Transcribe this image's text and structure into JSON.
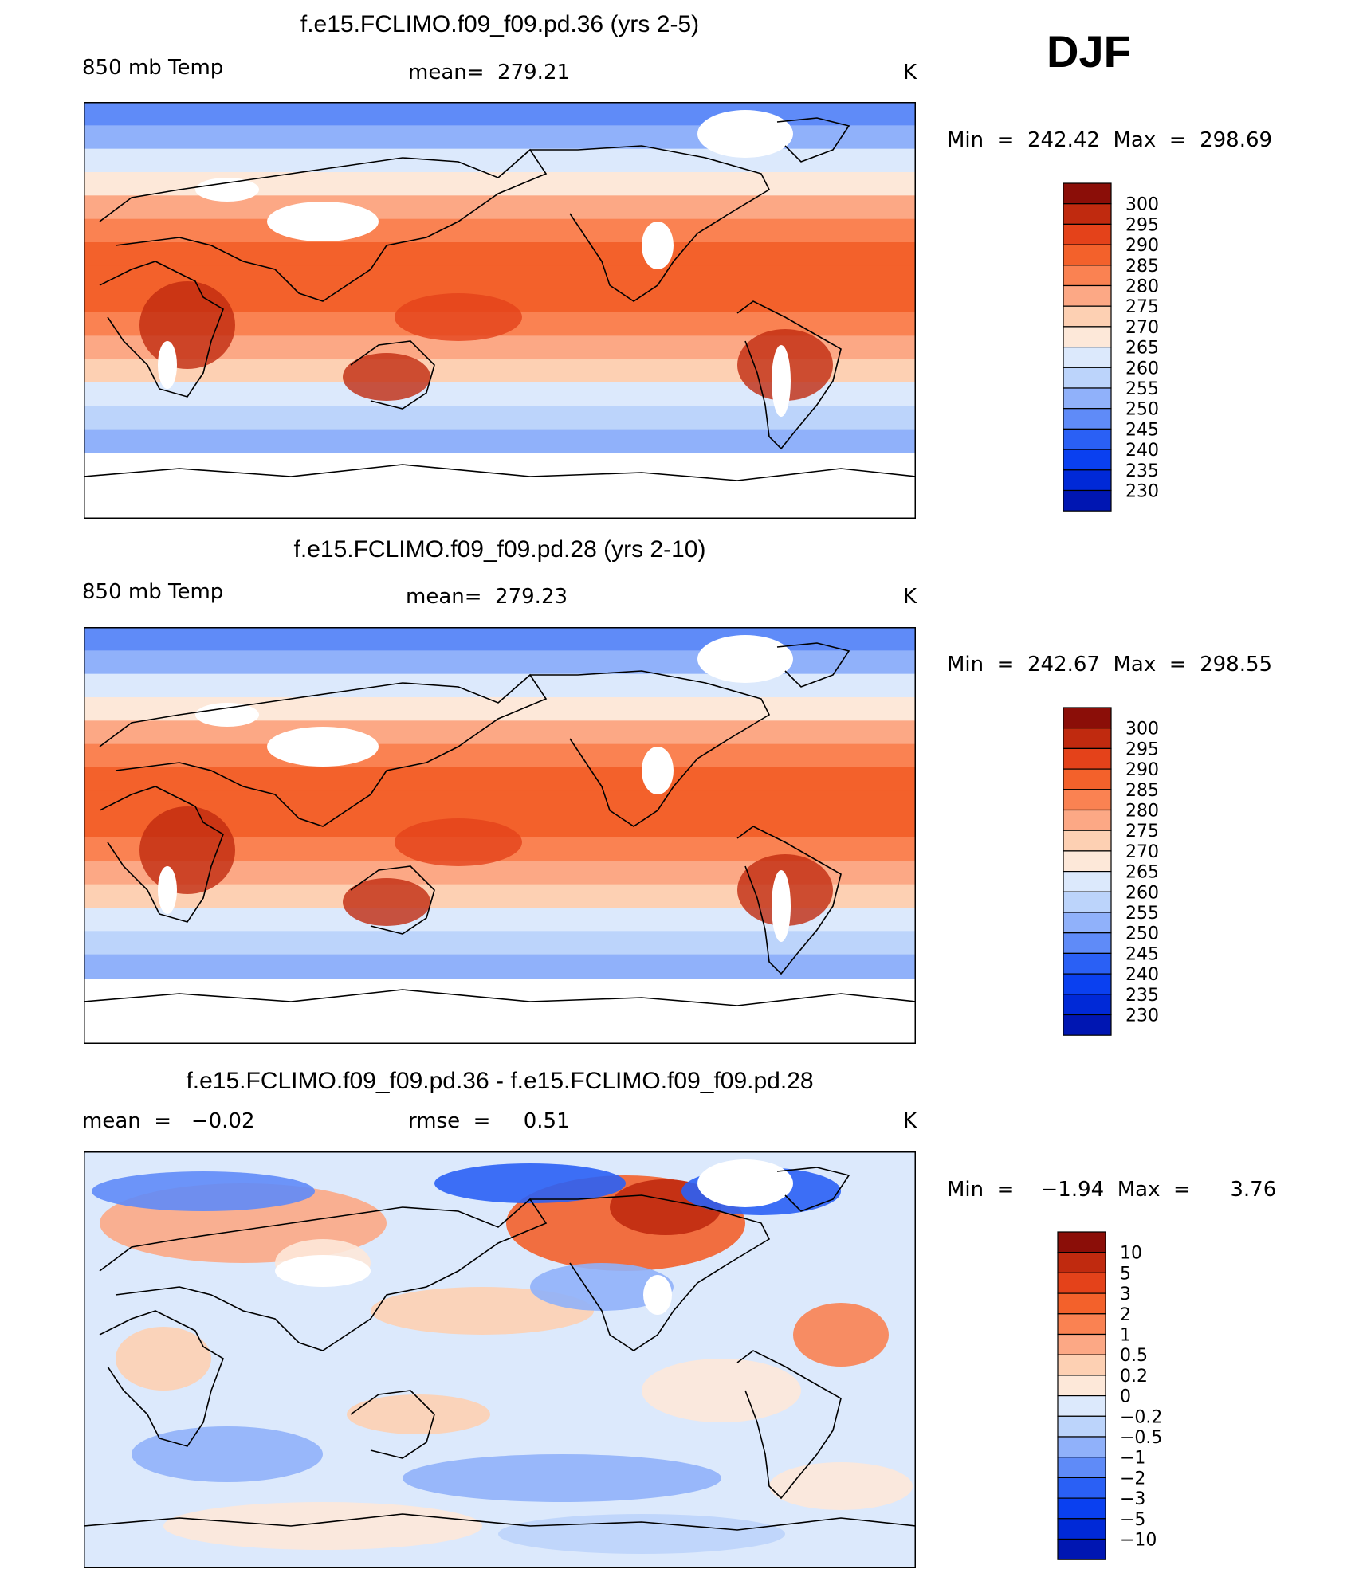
{
  "season": "DJF",
  "units": "K",
  "colors": {
    "abs_scale": [
      "#00007f",
      "#0016b2",
      "#0029d7",
      "#0a40f0",
      "#2a60f5",
      "#5f8bf8",
      "#90b1fa",
      "#bcd4fb",
      "#dce9fc",
      "#fde8d9",
      "#fdd0b3",
      "#fca885",
      "#fa8252",
      "#f3612b",
      "#e4421a",
      "#c02a0f",
      "#8b0e08"
    ],
    "diff_scale": [
      "#00007f",
      "#0016b2",
      "#0029d7",
      "#0a40f0",
      "#2a60f5",
      "#5f8bf8",
      "#90b1fa",
      "#bcd4fb",
      "#dce9fc",
      "#fde8d9",
      "#fdd0b3",
      "#fca885",
      "#fa8252",
      "#f3612b",
      "#e4421a",
      "#c02a0f",
      "#8b0e08"
    ]
  },
  "panels": [
    {
      "title": "f.e15.FCLIMO.f09_f09.pd.36 (yrs 2-5)",
      "left_label": "850 mb Temp",
      "center_label": "mean=  279.21",
      "units": "K",
      "min_max": "Min  =  242.42  Max  =  298.69"
    },
    {
      "title": "f.e15.FCLIMO.f09_f09.pd.28 (yrs 2-10)",
      "left_label": "850 mb Temp",
      "center_label": "mean=  279.23",
      "units": "K",
      "min_max": "Min  =  242.67  Max  =  298.55"
    },
    {
      "title": "f.e15.FCLIMO.f09_f09.pd.36 - f.e15.FCLIMO.f09_f09.pd.28",
      "left_label": "mean  =   −0.02",
      "center_label": "rmse  =     0.51",
      "units": "K",
      "min_max": "Min  =    −1.94  Max  =      3.76"
    }
  ],
  "chart_data": [
    {
      "type": "heatmap",
      "title": "f.e15.FCLIMO.f09_f09.pd.36 (yrs 2-5)",
      "variable": "850 mb Temp",
      "mean": 279.21,
      "min": 242.42,
      "max": 298.69,
      "units": "K",
      "colorbar_levels": [
        "300",
        "295",
        "290",
        "285",
        "280",
        "275",
        "270",
        "265",
        "260",
        "255",
        "250",
        "245",
        "240",
        "235",
        "230"
      ],
      "zonal_band_values_N_to_S": [
        252,
        258,
        266,
        274,
        282,
        288,
        291,
        292,
        290,
        286,
        281,
        275,
        268,
        262,
        257
      ]
    },
    {
      "type": "heatmap",
      "title": "f.e15.FCLIMO.f09_f09.pd.28 (yrs 2-10)",
      "variable": "850 mb Temp",
      "mean": 279.23,
      "min": 242.67,
      "max": 298.55,
      "units": "K",
      "colorbar_levels": [
        "300",
        "295",
        "290",
        "285",
        "280",
        "275",
        "270",
        "265",
        "260",
        "255",
        "250",
        "245",
        "240",
        "235",
        "230"
      ],
      "zonal_band_values_N_to_S": [
        252,
        258,
        266,
        274,
        282,
        288,
        291,
        292,
        290,
        286,
        281,
        275,
        268,
        262,
        257
      ]
    },
    {
      "type": "heatmap",
      "title": "f.e15.FCLIMO.f09_f09.pd.36 - f.e15.FCLIMO.f09_f09.pd.28",
      "mean": -0.02,
      "rmse": 0.51,
      "min": -1.94,
      "max": 3.76,
      "units": "K",
      "colorbar_levels": [
        "10",
        "5",
        "3",
        "2",
        "1",
        "0.5",
        "0.2",
        "0",
        "−0.2",
        "−0.5",
        "−1",
        "−2",
        "−3",
        "−5",
        "−10"
      ]
    }
  ]
}
